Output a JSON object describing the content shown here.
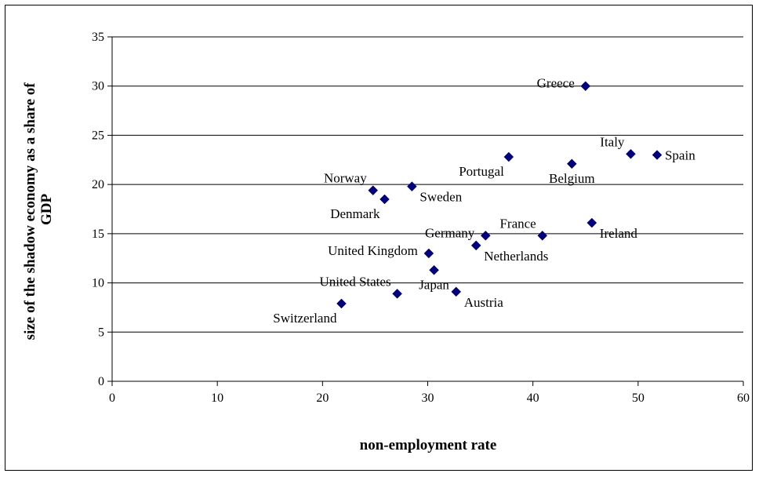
{
  "chart_data": {
    "type": "scatter",
    "title": "",
    "xlabel": "non-employment rate",
    "ylabel_lines": [
      "size of the shadow economy as a share of",
      "GDP"
    ],
    "xlim": [
      0,
      60
    ],
    "ylim": [
      0,
      35
    ],
    "xticks": [
      0,
      10,
      20,
      30,
      40,
      50,
      60
    ],
    "yticks": [
      0,
      5,
      10,
      15,
      20,
      25,
      30,
      35
    ],
    "grid": "horizontal",
    "marker": "diamond",
    "marker_color": "#000080",
    "points": [
      {
        "label": "Greece",
        "x": 45.0,
        "y": 30.0,
        "pos": "left"
      },
      {
        "label": "Italy",
        "x": 49.3,
        "y": 23.1,
        "pos": "above-left"
      },
      {
        "label": "Spain",
        "x": 51.8,
        "y": 23.0,
        "pos": "right"
      },
      {
        "label": "Portugal",
        "x": 37.7,
        "y": 22.8,
        "pos": "below-left"
      },
      {
        "label": "Belgium",
        "x": 43.7,
        "y": 22.1,
        "pos": "below"
      },
      {
        "label": "Norway",
        "x": 24.8,
        "y": 19.4,
        "pos": "above-left"
      },
      {
        "label": "Sweden",
        "x": 28.5,
        "y": 19.8,
        "pos": "below-right"
      },
      {
        "label": "Denmark",
        "x": 25.9,
        "y": 18.5,
        "pos": "below-left"
      },
      {
        "label": "France",
        "x": 40.9,
        "y": 14.8,
        "pos": "above-left"
      },
      {
        "label": "Ireland",
        "x": 45.6,
        "y": 16.1,
        "pos": "below-right"
      },
      {
        "label": "Germany",
        "x": 35.5,
        "y": 14.8,
        "pos": "left"
      },
      {
        "label": "Netherlands",
        "x": 34.6,
        "y": 13.8,
        "pos": "below-right"
      },
      {
        "label": "United Kingdom",
        "x": 30.1,
        "y": 13.0,
        "pos": "left"
      },
      {
        "label": "Japan",
        "x": 30.6,
        "y": 11.3,
        "pos": "below"
      },
      {
        "label": "United States",
        "x": 27.1,
        "y": 8.9,
        "pos": "above-left"
      },
      {
        "label": "Austria",
        "x": 32.7,
        "y": 9.1,
        "pos": "below-right"
      },
      {
        "label": "Switzerland",
        "x": 21.8,
        "y": 7.9,
        "pos": "below-left"
      }
    ]
  }
}
